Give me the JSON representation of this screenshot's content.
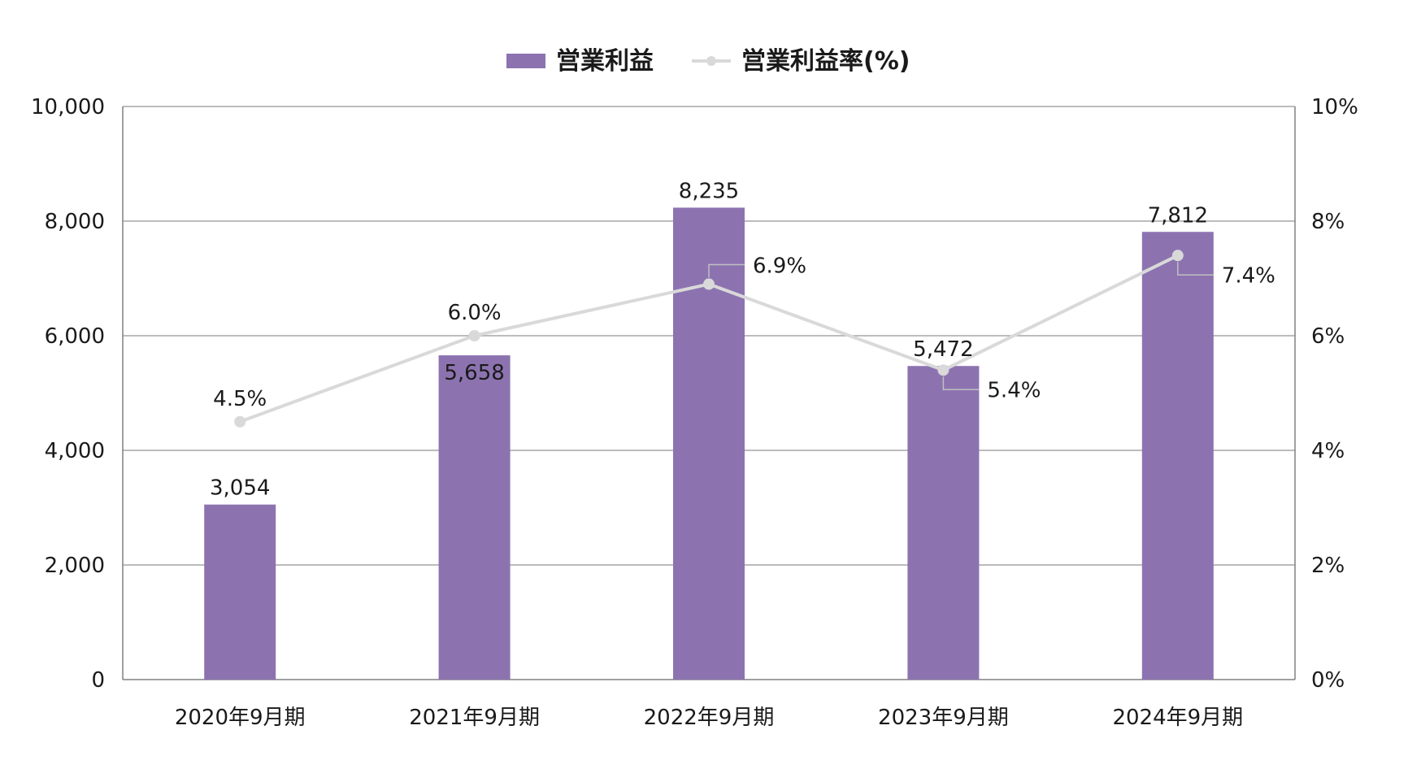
{
  "colors": {
    "bar": "#8c73b0",
    "line": "#d9d9d9",
    "grid": "#a6a6a6",
    "axis": "#808080",
    "leader": "#bfbfbf"
  },
  "chart_data": {
    "type": "bar",
    "categories": [
      "2020年9月期",
      "2021年9月期",
      "2022年9月期",
      "2023年9月期",
      "2024年9月期"
    ],
    "series": [
      {
        "name": "営業利益",
        "type": "bar",
        "axis": "left",
        "values": [
          3054,
          5658,
          8235,
          5472,
          7812
        ],
        "labels": [
          "3,054",
          "5,658",
          "8,235",
          "5,472",
          "7,812"
        ]
      },
      {
        "name": "営業利益率",
        "type": "line",
        "axis": "right",
        "values": [
          4.5,
          6.0,
          6.9,
          5.4,
          7.4
        ],
        "labels": [
          "4.5%",
          "6.0%",
          "6.9%",
          "5.4%",
          "7.4%"
        ]
      }
    ],
    "legend": {
      "position": "top-center",
      "items": [
        "営業利益",
        "営業利益率(%)"
      ]
    },
    "left_axis": {
      "ylim": [
        0,
        10000
      ],
      "ticks": [
        "0",
        "2,000",
        "4,000",
        "6,000",
        "8,000",
        "10,000"
      ]
    },
    "right_axis": {
      "ylim": [
        0,
        10
      ],
      "ticks": [
        "0%",
        "2%",
        "4%",
        "6%",
        "8%",
        "10%"
      ]
    },
    "grid": true
  }
}
